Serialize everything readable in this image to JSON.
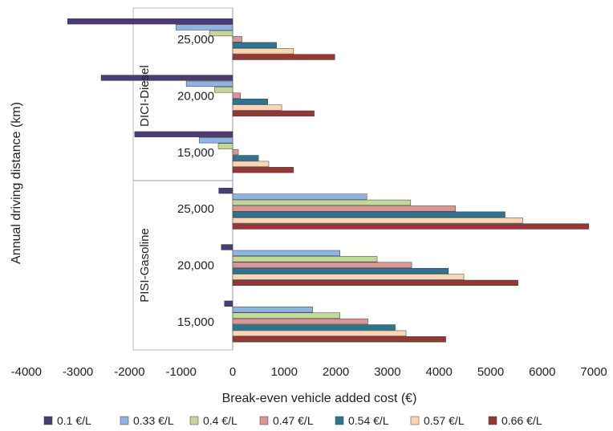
{
  "chart_data": {
    "type": "bar",
    "orientation": "horizontal",
    "title": "",
    "xlabel": "Break-even vehicle added cost (€)",
    "ylabel": "Annual driving distance (km)",
    "xlim": [
      -4000,
      7000
    ],
    "xticks": [
      -4000,
      -3000,
      -2000,
      -1000,
      0,
      1000,
      2000,
      3000,
      4000,
      5000,
      6000,
      7000
    ],
    "grid": false,
    "legend": "bottom",
    "groups": [
      {
        "name": "DICI-Diesel",
        "categories": [
          {
            "label": "25,000",
            "values": [
              -3200,
              -1100,
              -450,
              180,
              850,
              1180,
              1980
            ]
          },
          {
            "label": "20,000",
            "values": [
              -2550,
              -900,
              -350,
              150,
              680,
              950,
              1580
            ]
          },
          {
            "label": "15,000",
            "values": [
              -1900,
              -650,
              -280,
              110,
              500,
              700,
              1180
            ]
          }
        ]
      },
      {
        "name": "PISI-Gasoline",
        "categories": [
          {
            "label": "25,000",
            "values": [
              -270,
              2600,
              3450,
              4320,
              5280,
              5620,
              6900
            ]
          },
          {
            "label": "20,000",
            "values": [
              -220,
              2080,
              2800,
              3470,
              4180,
              4480,
              5530
            ]
          },
          {
            "label": "15,000",
            "values": [
              -160,
              1550,
              2080,
              2620,
              3150,
              3360,
              4130
            ]
          }
        ]
      }
    ],
    "series": [
      {
        "name": "0.1 €/L",
        "color": "#4d3b78"
      },
      {
        "name": "0.33 €/L",
        "color": "#8eb4e3"
      },
      {
        "name": "0.4 €/L",
        "color": "#c4d79b"
      },
      {
        "name": "0.47 €/L",
        "color": "#d99694"
      },
      {
        "name": "0.54 €/L",
        "color": "#2e7591"
      },
      {
        "name": "0.57 €/L",
        "color": "#fcd5b4"
      },
      {
        "name": "0.66 €/L",
        "color": "#953735"
      }
    ]
  }
}
